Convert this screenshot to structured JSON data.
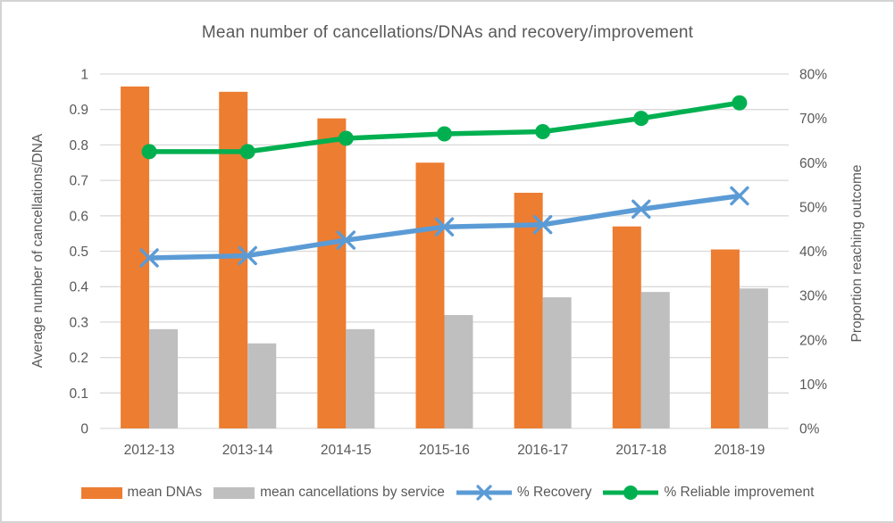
{
  "chart_data": {
    "type": "combo_bar_line",
    "title": "Mean number of cancellations/DNAs and recovery/improvement",
    "categories": [
      "2012-13",
      "2013-14",
      "2014-15",
      "2015-16",
      "2016-17",
      "2017-18",
      "2018-19"
    ],
    "bar_series": [
      {
        "name": "mean DNAs",
        "axis": "left",
        "color": "#ED7D31",
        "values": [
          0.965,
          0.95,
          0.875,
          0.75,
          0.665,
          0.57,
          0.505
        ]
      },
      {
        "name": "mean cancellations by service",
        "axis": "left",
        "color": "#BFBFBF",
        "values": [
          0.28,
          0.24,
          0.28,
          0.32,
          0.37,
          0.385,
          0.395
        ]
      }
    ],
    "line_series": [
      {
        "name": "% Recovery",
        "axis": "right",
        "color": "#5B9BD5",
        "marker": "x",
        "values_pct": [
          38.5,
          39,
          42.5,
          45.5,
          46,
          49.5,
          52.5
        ]
      },
      {
        "name": "% Reliable improvement",
        "axis": "right",
        "color": "#00B050",
        "marker": "circle",
        "values_pct": [
          62.5,
          62.5,
          65.5,
          66.5,
          67,
          70,
          73.5
        ]
      }
    ],
    "left_axis": {
      "title": "Average number of cancellations/DNA",
      "min": 0,
      "max": 1,
      "tick_step": 0.1,
      "tick_labels": [
        "0",
        "0.1",
        "0.2",
        "0.3",
        "0.4",
        "0.5",
        "0.6",
        "0.7",
        "0.8",
        "0.9",
        "1"
      ]
    },
    "right_axis": {
      "title": "Proportion reaching outcome",
      "min": 0,
      "max": 80,
      "tick_step": 10,
      "tick_labels": [
        "0%",
        "10%",
        "20%",
        "30%",
        "40%",
        "50%",
        "60%",
        "70%",
        "80%"
      ]
    },
    "grid": true,
    "legend_position": "bottom",
    "gridline_color": "#D9D9D9",
    "text_color": "#595959"
  }
}
